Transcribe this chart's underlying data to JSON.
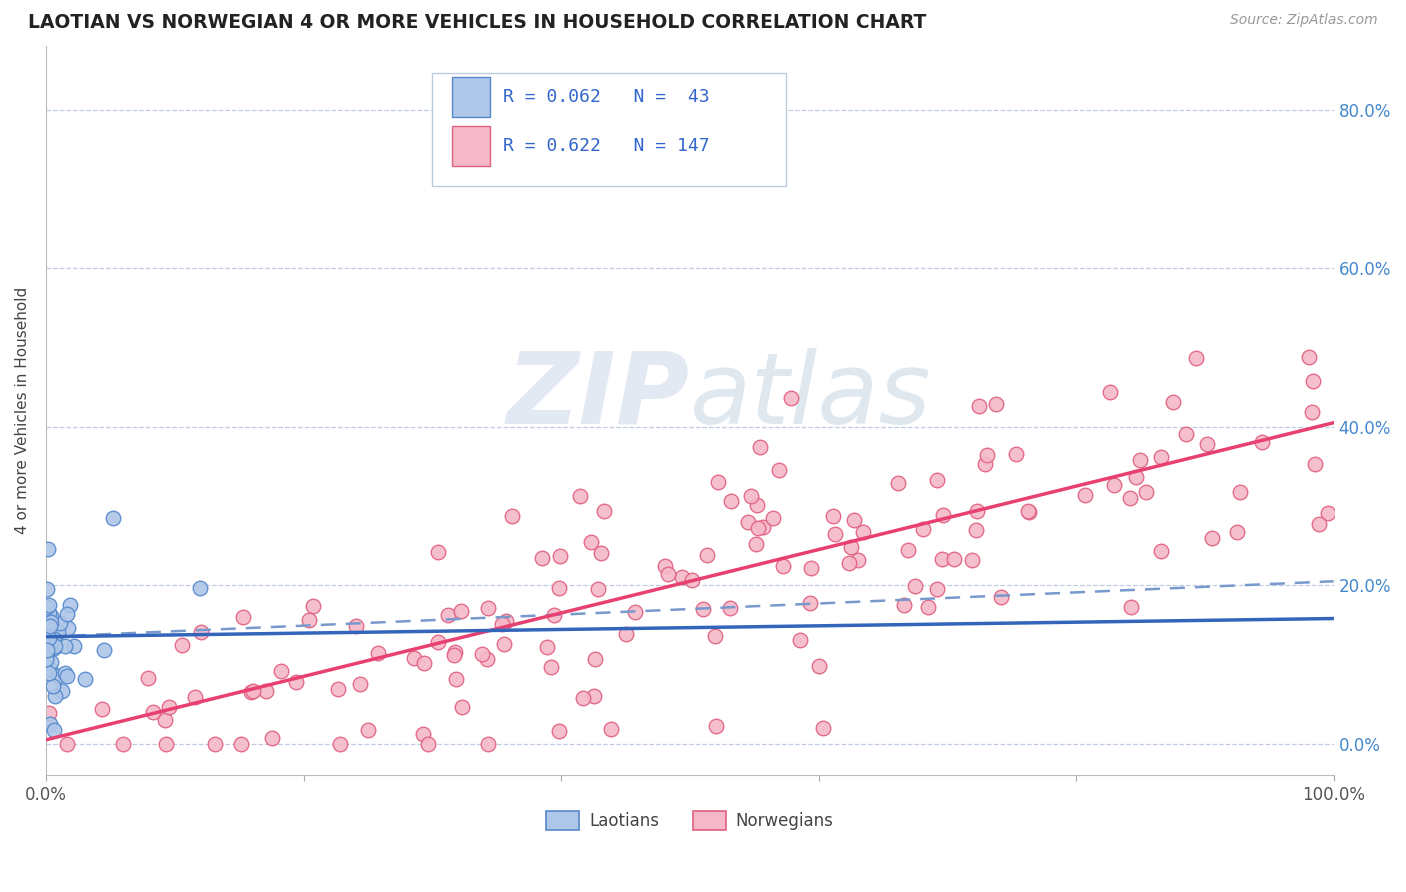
{
  "title": "LAOTIAN VS NORWEGIAN 4 OR MORE VEHICLES IN HOUSEHOLD CORRELATION CHART",
  "source_text": "Source: ZipAtlas.com",
  "ylabel": "4 or more Vehicles in Household",
  "xmin": 0.0,
  "xmax": 1.0,
  "ymin": -0.04,
  "ymax": 0.88,
  "ytick_values": [
    0.0,
    0.2,
    0.4,
    0.6,
    0.8
  ],
  "legend_r_laotian": "R = 0.062",
  "legend_n_laotian": "N =  43",
  "legend_r_norwegian": "R = 0.622",
  "legend_n_norwegian": "N = 147",
  "laotian_color": "#aec6e8",
  "laotian_edge_color": "#5588cc",
  "laotian_line_color": "#3366bb",
  "norwegian_color": "#f5b8c8",
  "norwegian_edge_color": "#e06080",
  "norwegian_line_color": "#e84070",
  "dashed_line_color": "#7799cc",
  "watermark_color": "#ccd8e8",
  "background_color": "#ffffff",
  "grid_color": "#c0cce0",
  "ytick_color": "#4488cc",
  "title_color": "#222222",
  "source_color": "#999999",
  "legend_text_color": "#3366cc",
  "lao_line_start_y": 0.135,
  "lao_line_end_y": 0.158,
  "nor_line_start_y": 0.005,
  "nor_line_end_y": 0.405,
  "dash_line_start_y": 0.135,
  "dash_line_end_y": 0.205
}
